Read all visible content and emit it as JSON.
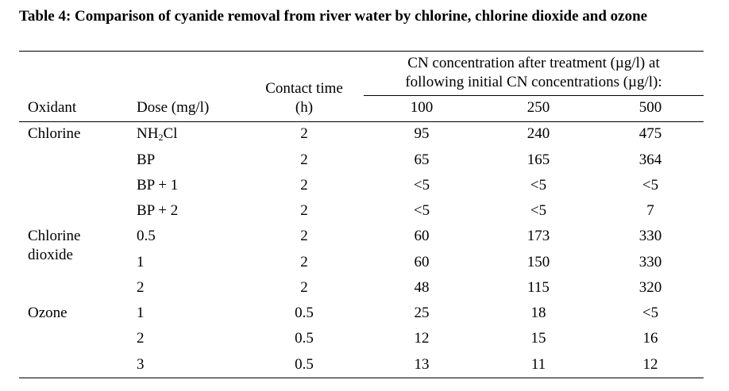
{
  "caption": "Table 4: Comparison of cyanide removal from river water by chlorine, chlorine dioxide and ozone",
  "headers": {
    "oxidant": "Oxidant",
    "dose": "Dose (mg/l)",
    "contact_line1": "Contact time",
    "contact_line2": "(h)",
    "cn_line1": "CN concentration after treatment (µg/l) at",
    "cn_line2": "following initial CN concentrations (µg/l):",
    "initial": [
      "100",
      "250",
      "500"
    ]
  },
  "groups": [
    {
      "oxidant_line1": "Chlorine",
      "oxidant_line2": "",
      "rows": [
        {
          "dose_main": "NH",
          "dose_sub": "2",
          "dose_tail": "Cl",
          "time": "2",
          "v": [
            "95",
            "240",
            "475"
          ]
        },
        {
          "dose": "BP",
          "time": "2",
          "v": [
            "65",
            "165",
            "364"
          ]
        },
        {
          "dose": "BP + 1",
          "time": "2",
          "v": [
            "<5",
            "<5",
            "<5"
          ]
        },
        {
          "dose": "BP + 2",
          "time": "2",
          "v": [
            "<5",
            "<5",
            "7"
          ]
        }
      ]
    },
    {
      "oxidant_line1": "Chlorine",
      "oxidant_line2": "dioxide",
      "rows": [
        {
          "dose": "0.5",
          "time": "2",
          "v": [
            "60",
            "173",
            "330"
          ]
        },
        {
          "dose": "1",
          "time": "2",
          "v": [
            "60",
            "150",
            "330"
          ]
        },
        {
          "dose": "2",
          "time": "2",
          "v": [
            "48",
            "115",
            "320"
          ]
        }
      ]
    },
    {
      "oxidant_line1": "Ozone",
      "oxidant_line2": "",
      "rows": [
        {
          "dose": "1",
          "time": "0.5",
          "v": [
            "25",
            "18",
            "<5"
          ]
        },
        {
          "dose": "2",
          "time": "0.5",
          "v": [
            "12",
            "15",
            "16"
          ]
        },
        {
          "dose": "3",
          "time": "0.5",
          "v": [
            "13",
            "11",
            "12"
          ]
        }
      ]
    }
  ]
}
